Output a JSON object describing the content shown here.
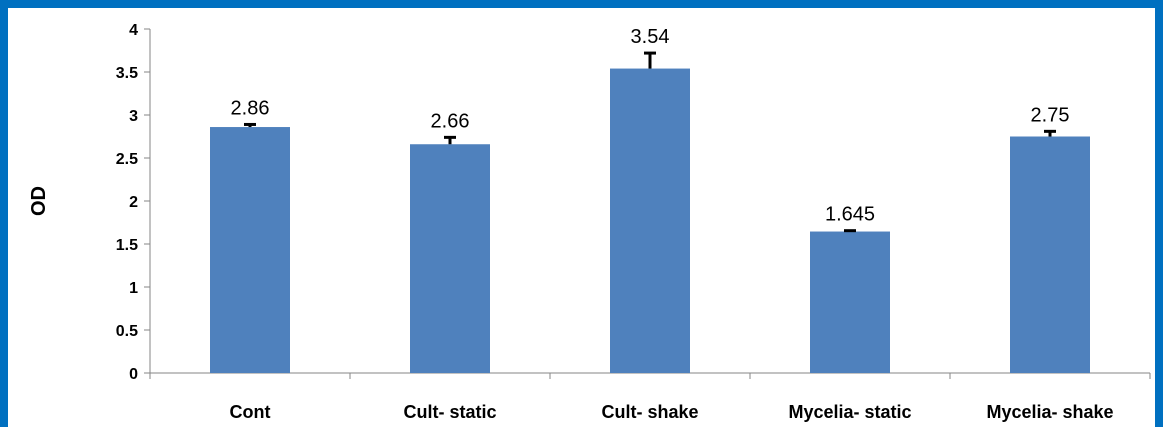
{
  "chart_data": {
    "type": "bar",
    "categories": [
      "Cont",
      "Cult- static",
      "Cult- shake",
      "Mycelia- static",
      "Mycelia- shake"
    ],
    "values": [
      2.86,
      2.66,
      3.54,
      1.645,
      2.75
    ],
    "data_labels": [
      "2.86",
      "2.66",
      "3.54",
      "1.645",
      "2.75"
    ],
    "error_bars": [
      0.03,
      0.08,
      0.18,
      0.01,
      0.06
    ],
    "ylabel": "OD",
    "xlabel": "",
    "ylim": [
      0,
      4
    ],
    "yticks": [
      0,
      0.5,
      1,
      1.5,
      2,
      2.5,
      3,
      3.5,
      4
    ],
    "ytick_labels": [
      "0",
      "0.5",
      "1",
      "1.5",
      "2",
      "2.5",
      "3",
      "3.5",
      "4"
    ],
    "grid": false,
    "legend": "none",
    "bar_color": "#4f81bd",
    "error_bar_color": "#000000",
    "frame_color": "#0070c0"
  }
}
